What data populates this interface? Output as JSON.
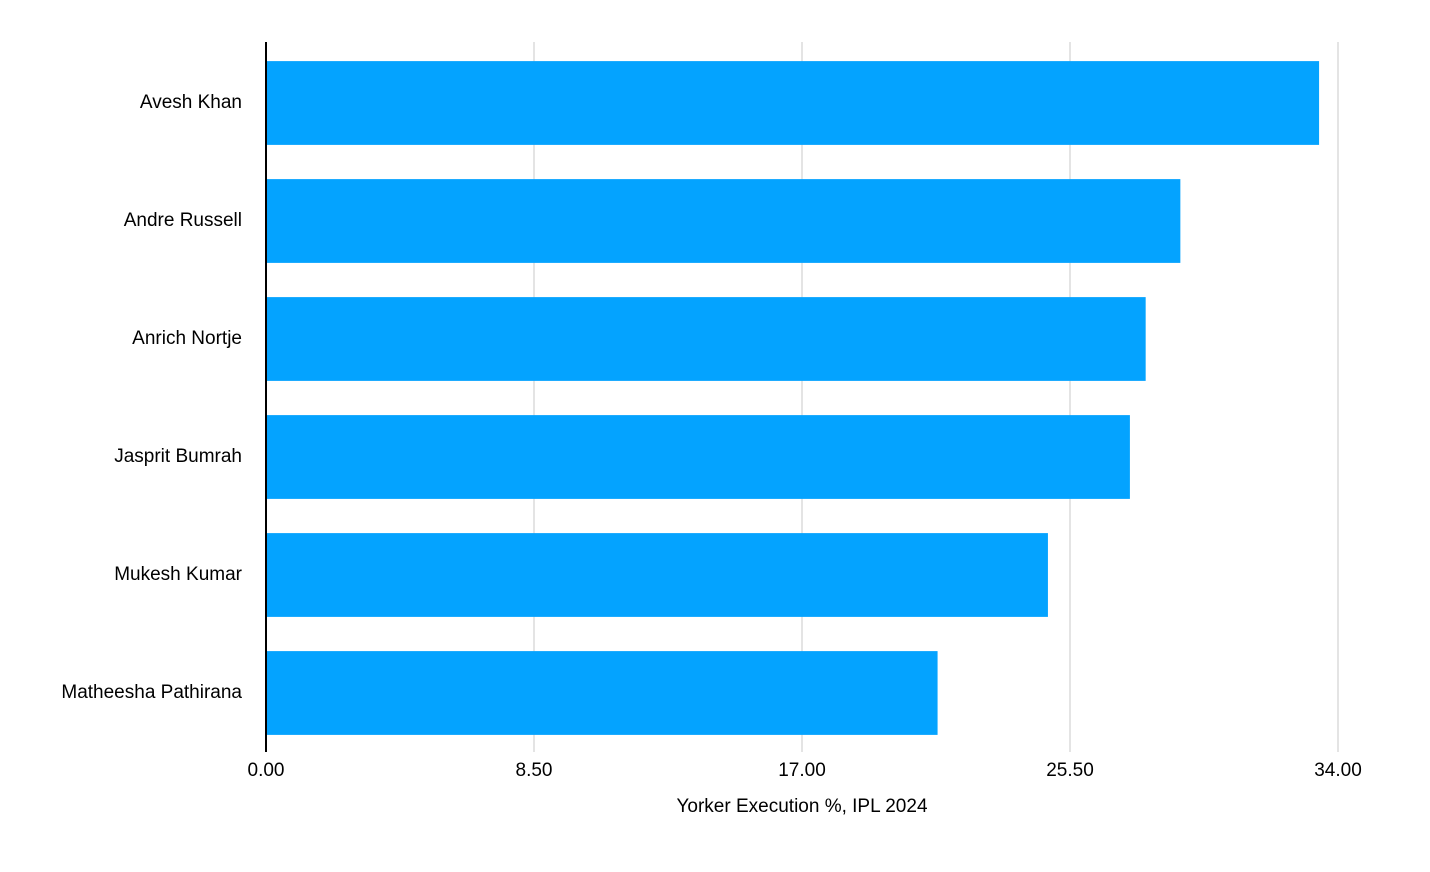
{
  "chart_data": {
    "type": "bar",
    "orientation": "horizontal",
    "xlabel": "Yorker Execution %, IPL 2024",
    "categories": [
      "Avesh Khan",
      "Andre Russell",
      "Anrich Nortje",
      "Jasprit Bumrah",
      "Mukesh Kumar",
      "Matheesha Pathirana"
    ],
    "values": [
      33.4,
      29.0,
      27.9,
      27.4,
      24.8,
      21.3
    ],
    "color": "#04a3ff",
    "xlim": [
      0,
      34
    ],
    "xticks": [
      {
        "value": 0,
        "label": "0.00"
      },
      {
        "value": 8.5,
        "label": "8.50"
      },
      {
        "value": 17,
        "label": "17.00"
      },
      {
        "value": 25.5,
        "label": "25.50"
      },
      {
        "value": 34,
        "label": "34.00"
      }
    ],
    "grid": true
  }
}
